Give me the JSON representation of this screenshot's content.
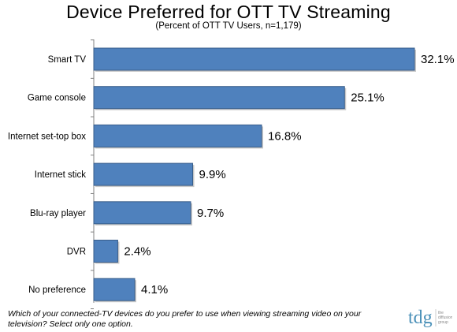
{
  "chart_data": {
    "type": "bar",
    "orientation": "horizontal",
    "title": "Device Preferred for OTT TV Streaming",
    "subtitle": "(Percent of OTT TV Users, n=1,179)",
    "categories": [
      "Smart TV",
      "Game console",
      "Internet set-top box",
      "Internet stick",
      "Blu-ray player",
      "DVR",
      "No preference"
    ],
    "values": [
      32.1,
      25.1,
      16.8,
      9.9,
      9.7,
      2.4,
      4.1
    ],
    "value_labels": [
      "32.1%",
      "25.1%",
      "16.8%",
      "9.9%",
      "9.7%",
      "2.4%",
      "4.1%"
    ],
    "xlim": [
      0,
      32.1
    ],
    "grid": false,
    "bar_color": "#4f81bd",
    "bar_border_color": "#385d8a"
  },
  "footnote": "Which of your connected-TV devices do you prefer to use when  viewing streaming video on your television? Select only one option.",
  "logo": {
    "text": "tdg",
    "tagline_lines": [
      "the",
      "diffusion",
      "group"
    ],
    "color": "#4a90b8"
  }
}
